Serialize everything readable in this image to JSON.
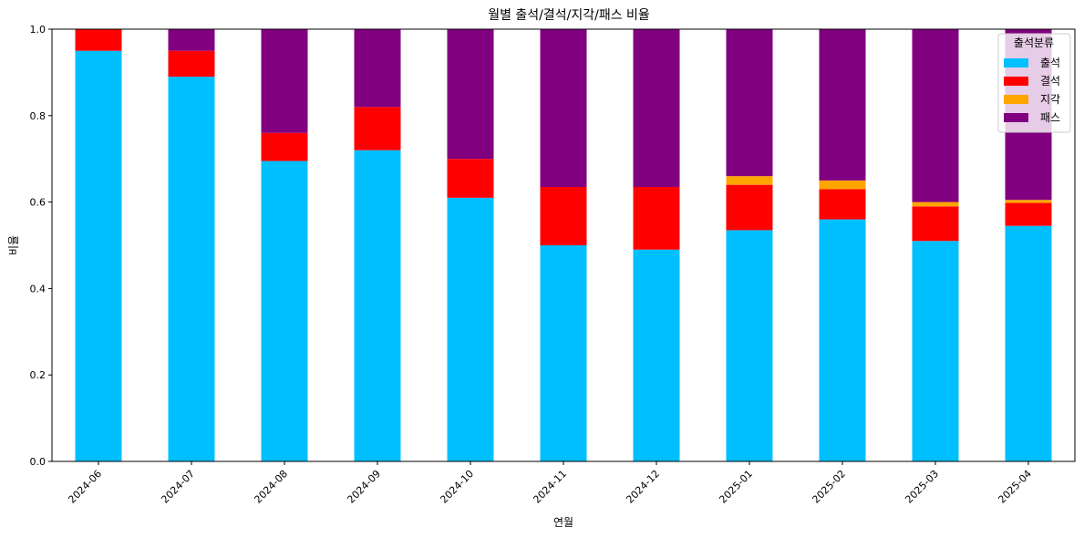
{
  "chart_data": {
    "type": "bar",
    "stacked": true,
    "title": "월별 출석/결석/지각/패스 비율",
    "xlabel": "연월",
    "ylabel": "비율",
    "ylim": [
      0,
      1
    ],
    "yticks": [
      "0.0",
      "0.2",
      "0.4",
      "0.6",
      "0.8",
      "1.0"
    ],
    "categories": [
      "2024-06",
      "2024-07",
      "2024-08",
      "2024-09",
      "2024-10",
      "2024-11",
      "2024-12",
      "2025-01",
      "2025-02",
      "2025-03",
      "2025-04"
    ],
    "legend": {
      "title": "출석분류",
      "position": "top-right"
    },
    "series": [
      {
        "name": "출석",
        "color": "#00bfff",
        "values": [
          0.95,
          0.89,
          0.695,
          0.72,
          0.61,
          0.5,
          0.49,
          0.535,
          0.56,
          0.51,
          0.545
        ]
      },
      {
        "name": "결석",
        "color": "#ff0000",
        "values": [
          0.05,
          0.06,
          0.065,
          0.1,
          0.09,
          0.135,
          0.145,
          0.105,
          0.07,
          0.08,
          0.053
        ]
      },
      {
        "name": "지각",
        "color": "#ffa500",
        "values": [
          0,
          0,
          0,
          0,
          0,
          0,
          0,
          0.02,
          0.02,
          0.01,
          0.007
        ]
      },
      {
        "name": "패스",
        "color": "#800080",
        "values": [
          0,
          0.05,
          0.24,
          0.18,
          0.3,
          0.365,
          0.365,
          0.34,
          0.35,
          0.4,
          0.395
        ]
      }
    ]
  }
}
